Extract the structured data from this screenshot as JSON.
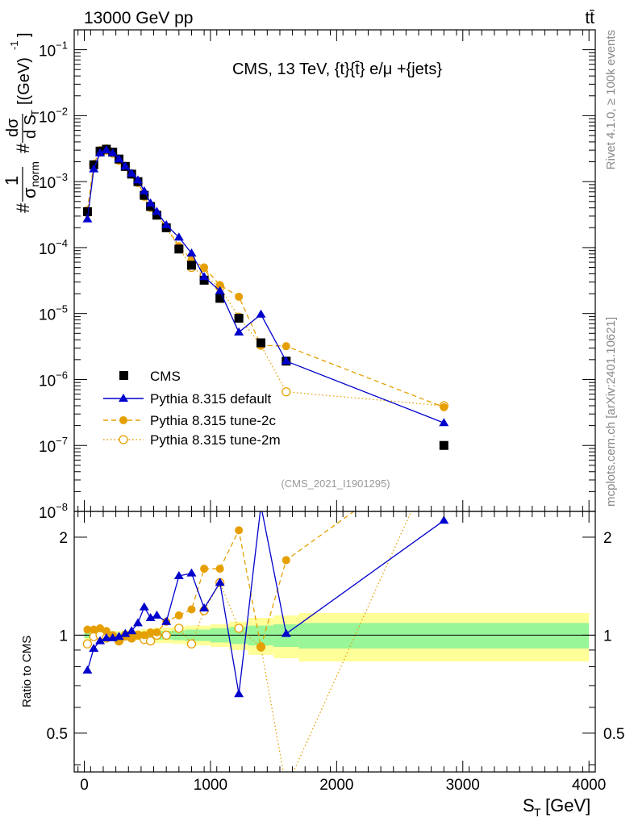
{
  "header": {
    "energy_label": "13000 GeV pp",
    "process_label": "tt̄",
    "plot_title": "CMS, 13 TeV, {t}{t̄} e/μ +{jets}",
    "analysis_id": "(CMS_2021_I1901295)",
    "side_text_top": "Rivet 4.1.0, ≥ 100k events",
    "side_text_bottom": "mcplots.cern.ch [arXiv:2401.10621]"
  },
  "axes": {
    "x_label": "S",
    "x_label_sub": "T",
    "x_label_unit": "[GeV]",
    "ratio_label": "Ratio to CMS"
  },
  "colors": {
    "data": "#000000",
    "default": "#0000cc",
    "tune2c": "#e69f00",
    "tune2m": "#e69f00",
    "band_inner": "#98f598",
    "band_outer": "#ffff99"
  },
  "chart_data": {
    "type": "scatter",
    "main": {
      "yscale": "log",
      "ylim": [
        1e-08,
        0.2
      ],
      "y_ticks": [
        {
          "v": 1e-08,
          "mant": "10",
          "exp": "−8"
        },
        {
          "v": 1e-07,
          "mant": "10",
          "exp": "−7"
        },
        {
          "v": 1e-06,
          "mant": "10",
          "exp": "−6"
        },
        {
          "v": 1e-05,
          "mant": "10",
          "exp": "−5"
        },
        {
          "v": 0.0001,
          "mant": "10",
          "exp": "−4"
        },
        {
          "v": 0.001,
          "mant": "10",
          "exp": "−3"
        },
        {
          "v": 0.01,
          "mant": "10",
          "exp": "−2"
        },
        {
          "v": 0.1,
          "mant": "10",
          "exp": "−1"
        }
      ]
    },
    "ratio": {
      "yscale": "log",
      "ylim": [
        0.38,
        2.4
      ],
      "y_ticks": [
        {
          "v": 0.5,
          "label": "0.5"
        },
        {
          "v": 1,
          "label": "1"
        },
        {
          "v": 2,
          "label": "2"
        }
      ]
    },
    "xlim": [
      -80,
      4050
    ],
    "x_ticks": [
      {
        "v": 0,
        "label": "0"
      },
      {
        "v": 1000,
        "label": "1000"
      },
      {
        "v": 2000,
        "label": "2000"
      },
      {
        "v": 3000,
        "label": "3000"
      },
      {
        "v": 4000,
        "label": "4000"
      }
    ],
    "series": [
      {
        "name": "CMS",
        "key": "data",
        "x": [
          25,
          75,
          125,
          175,
          225,
          275,
          325,
          375,
          425,
          475,
          525,
          575,
          650,
          750,
          850,
          950,
          1075,
          1225,
          1400,
          1600,
          2850
        ],
        "y": [
          0.00035,
          0.0018,
          0.0029,
          0.0031,
          0.0028,
          0.0022,
          0.0017,
          0.0013,
          0.001,
          0.00062,
          0.00042,
          0.00031,
          0.0002,
          9.5e-05,
          5.4e-05,
          3.2e-05,
          1.7e-05,
          8.5e-06,
          3.6e-06,
          1.9e-06,
          1e-07
        ]
      },
      {
        "name": "Pythia 8.315 default",
        "key": "default",
        "x": [
          25,
          75,
          125,
          175,
          225,
          275,
          325,
          375,
          425,
          475,
          525,
          575,
          650,
          750,
          850,
          950,
          1075,
          1225,
          1400,
          1600,
          2850
        ],
        "y": [
          0.00027,
          0.00155,
          0.0027,
          0.003,
          0.0027,
          0.0022,
          0.0017,
          0.00133,
          0.00105,
          0.00072,
          0.00047,
          0.00035,
          0.00022,
          0.000143,
          8.2e-05,
          3.6e-05,
          2.2e-05,
          5.2e-06,
          9.7e-06,
          1.9e-06,
          2.2e-07
        ],
        "ratio": [
          0.78,
          0.91,
          0.96,
          0.98,
          0.98,
          0.99,
          1.01,
          1.03,
          1.09,
          1.22,
          1.13,
          1.15,
          1.1,
          1.52,
          1.55,
          1.21,
          1.45,
          0.66,
          2.5,
          1.01,
          2.25
        ]
      },
      {
        "name": "Pythia 8.315 tune-2c",
        "key": "tune2c",
        "x": [
          25,
          75,
          125,
          175,
          225,
          275,
          325,
          375,
          425,
          475,
          525,
          575,
          650,
          750,
          850,
          950,
          1075,
          1225,
          1400,
          1600,
          2850
        ],
        "y": [
          0.00037,
          0.00185,
          0.003,
          0.0032,
          0.0028,
          0.0021,
          0.0017,
          0.00128,
          0.001,
          0.00062,
          0.0004,
          0.00031,
          0.000205,
          0.000105,
          6.5e-05,
          5e-05,
          2.7e-05,
          1.8e-05,
          3.3e-06,
          3.2e-06,
          3.8e-07
        ],
        "ratio": [
          1.04,
          1.04,
          1.05,
          1.03,
          1.0,
          0.96,
          0.99,
          0.98,
          1.0,
          1.0,
          1.02,
          1.02,
          1.1,
          1.15,
          1.2,
          1.6,
          1.6,
          2.1,
          0.92,
          1.7,
          3.8
        ]
      },
      {
        "name": "Pythia 8.315 tune-2m",
        "key": "tune2m",
        "x": [
          25,
          75,
          125,
          175,
          225,
          275,
          325,
          375,
          425,
          475,
          525,
          575,
          650,
          750,
          850,
          950,
          1075,
          1225,
          1400,
          1600,
          2850
        ],
        "y": [
          0.00034,
          0.0018,
          0.0028,
          0.003,
          0.0027,
          0.0021,
          0.0017,
          0.0013,
          0.00097,
          0.0006,
          0.00041,
          0.00031,
          0.0002,
          0.0001,
          5e-05,
          3.8e-05,
          2.5e-05,
          8.8e-06,
          3.3e-06,
          6.5e-07,
          4e-07
        ],
        "ratio": [
          0.94,
          0.99,
          1.0,
          0.98,
          0.99,
          0.96,
          1.0,
          0.98,
          1.0,
          0.97,
          0.96,
          1.0,
          1.0,
          1.05,
          0.94,
          1.19,
          1.45,
          1.05,
          0.92,
          0.34,
          4.0
        ]
      }
    ],
    "ratio_band": [
      {
        "x0": 0,
        "x1": 50,
        "inner": 0.02,
        "outer": 0.04
      },
      {
        "x0": 50,
        "x1": 150,
        "inner": 0.015,
        "outer": 0.03
      },
      {
        "x0": 150,
        "x1": 300,
        "inner": 0.015,
        "outer": 0.03
      },
      {
        "x0": 300,
        "x1": 450,
        "inner": 0.02,
        "outer": 0.035
      },
      {
        "x0": 450,
        "x1": 550,
        "inner": 0.025,
        "outer": 0.045
      },
      {
        "x0": 550,
        "x1": 700,
        "inner": 0.03,
        "outer": 0.055
      },
      {
        "x0": 700,
        "x1": 800,
        "inner": 0.035,
        "outer": 0.06
      },
      {
        "x0": 800,
        "x1": 1000,
        "inner": 0.04,
        "outer": 0.07
      },
      {
        "x0": 1000,
        "x1": 1150,
        "inner": 0.05,
        "outer": 0.08
      },
      {
        "x0": 1150,
        "x1": 1300,
        "inner": 0.06,
        "outer": 0.1
      },
      {
        "x0": 1300,
        "x1": 1500,
        "inner": 0.07,
        "outer": 0.13
      },
      {
        "x0": 1500,
        "x1": 1700,
        "inner": 0.08,
        "outer": 0.15
      },
      {
        "x0": 1700,
        "x1": 4000,
        "inner": 0.09,
        "outer": 0.17
      }
    ]
  }
}
